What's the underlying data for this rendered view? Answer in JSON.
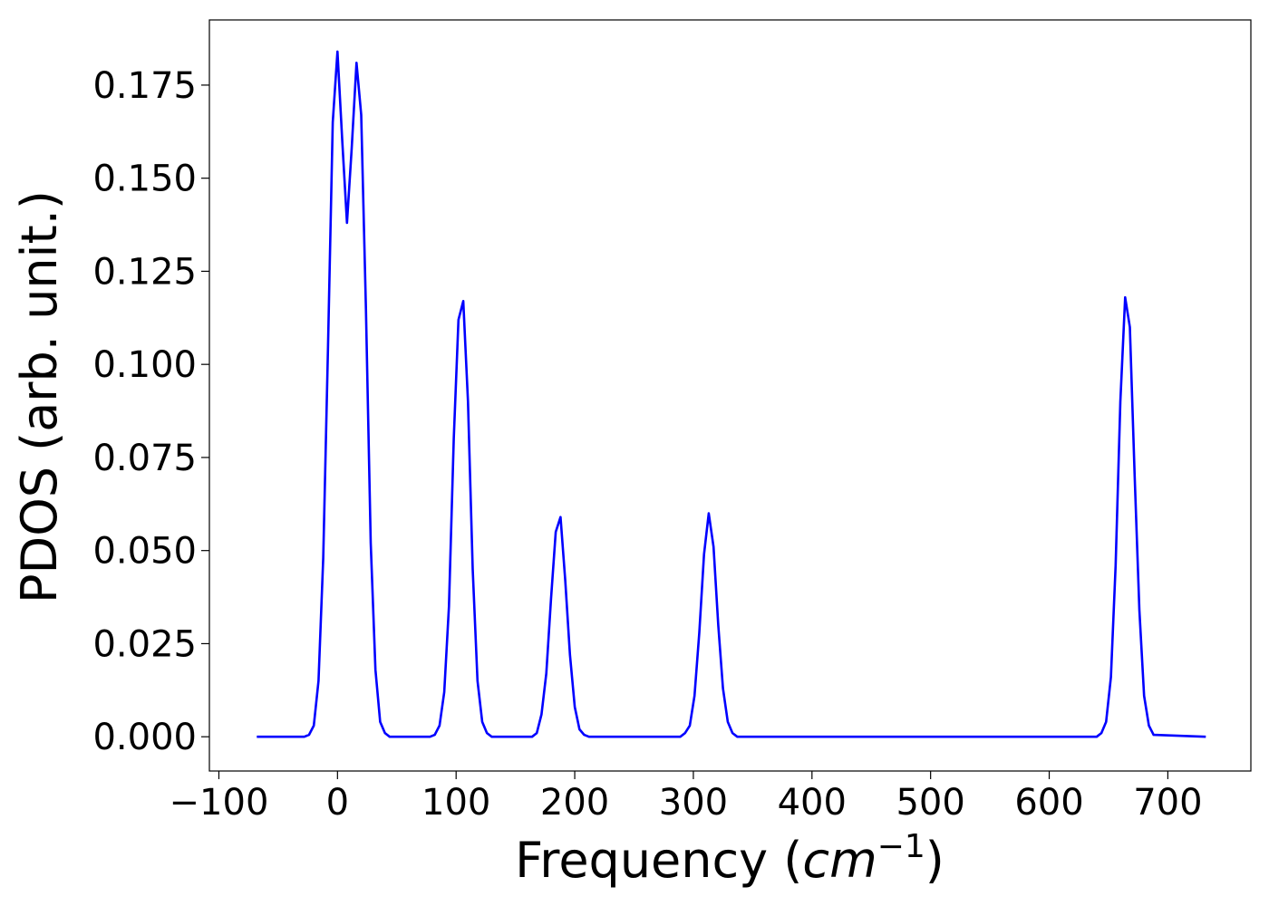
{
  "chart_data": {
    "type": "line",
    "title": "",
    "xlabel_main": "Frequency (",
    "xlabel_math": "cm",
    "xlabel_exp": "−1",
    "xlabel_close": ")",
    "ylabel": "PDOS (arb. unit.)",
    "xlim": [
      -108,
      770
    ],
    "ylim": [
      -0.0092,
      0.1925
    ],
    "x_ticks": [
      -100,
      0,
      100,
      200,
      300,
      400,
      500,
      600,
      700
    ],
    "x_tick_labels": [
      "−100",
      "0",
      "100",
      "200",
      "300",
      "400",
      "500",
      "600",
      "700"
    ],
    "y_ticks": [
      0.0,
      0.025,
      0.05,
      0.075,
      0.1,
      0.125,
      0.15,
      0.175
    ],
    "y_tick_labels": [
      "0.000",
      "0.025",
      "0.050",
      "0.075",
      "0.100",
      "0.125",
      "0.150",
      "0.175"
    ],
    "grid": false,
    "series": [
      {
        "color": "#0000ff",
        "x": [
          -68,
          -28,
          -24,
          -20,
          -16,
          -12,
          -8,
          -4,
          0,
          4,
          8,
          12,
          16,
          20,
          24,
          28,
          32,
          36,
          40,
          44,
          48,
          78,
          82,
          86,
          90,
          94,
          98,
          102,
          106,
          110,
          114,
          118,
          122,
          126,
          130,
          134,
          164,
          168,
          172,
          176,
          180,
          184,
          188,
          192,
          196,
          200,
          204,
          208,
          212,
          216,
          289,
          293,
          297,
          301,
          305,
          309,
          313,
          317,
          321,
          325,
          329,
          333,
          337,
          640,
          644,
          648,
          652,
          656,
          660,
          664,
          668,
          672,
          676,
          680,
          684,
          688,
          732
        ],
        "y": [
          0.0,
          0.0,
          0.0005,
          0.003,
          0.015,
          0.048,
          0.105,
          0.165,
          0.184,
          0.16,
          0.138,
          0.158,
          0.181,
          0.167,
          0.115,
          0.052,
          0.018,
          0.004,
          0.001,
          0.0,
          0.0,
          0.0,
          0.0005,
          0.003,
          0.012,
          0.035,
          0.08,
          0.112,
          0.117,
          0.09,
          0.045,
          0.015,
          0.004,
          0.001,
          0.0,
          0.0,
          0.0,
          0.001,
          0.006,
          0.017,
          0.037,
          0.055,
          0.059,
          0.042,
          0.022,
          0.008,
          0.002,
          0.0005,
          0.0,
          0.0,
          0.0,
          0.001,
          0.003,
          0.011,
          0.028,
          0.049,
          0.06,
          0.051,
          0.03,
          0.013,
          0.004,
          0.001,
          0.0,
          0.0,
          0.001,
          0.004,
          0.016,
          0.046,
          0.09,
          0.118,
          0.11,
          0.07,
          0.034,
          0.011,
          0.003,
          0.0005,
          0.0
        ]
      }
    ]
  }
}
